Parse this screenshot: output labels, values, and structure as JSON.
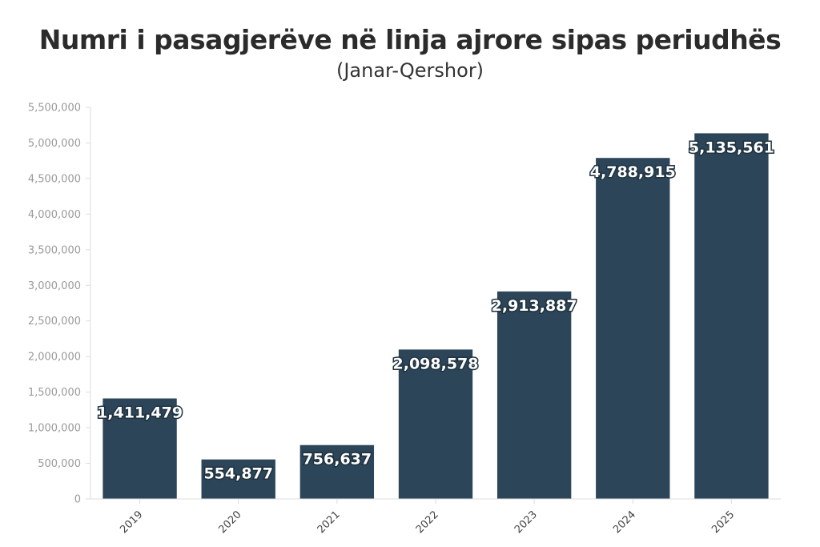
{
  "chart_data": {
    "type": "bar",
    "title": "Numri i pasagjerëve në linja ajrore sipas periudhës",
    "subtitle": "(Janar-Qershor)",
    "categories": [
      "2019",
      "2020",
      "2021",
      "2022",
      "2023",
      "2024",
      "2025"
    ],
    "values": [
      1411479,
      554877,
      756637,
      2098578,
      2913887,
      4788915,
      5135561
    ],
    "data_labels": [
      "1,411,479",
      "554,877",
      "756,637",
      "2,098,578",
      "2,913,887",
      "4,788,915",
      "5,135,561"
    ],
    "ylim": [
      0,
      5500000
    ],
    "yticks": [
      0,
      500000,
      1000000,
      1500000,
      2000000,
      2500000,
      3000000,
      3500000,
      4000000,
      4500000,
      5000000,
      5500000
    ],
    "ytick_labels": [
      "0",
      "500,000",
      "1,000,000",
      "1,500,000",
      "2,000,000",
      "2,500,000",
      "3,000,000",
      "3,500,000",
      "4,000,000",
      "4,500,000",
      "5,000,000",
      "5,500,000"
    ],
    "xlabel": "",
    "ylabel": "",
    "bar_color": "#2c4558",
    "grid": false
  }
}
